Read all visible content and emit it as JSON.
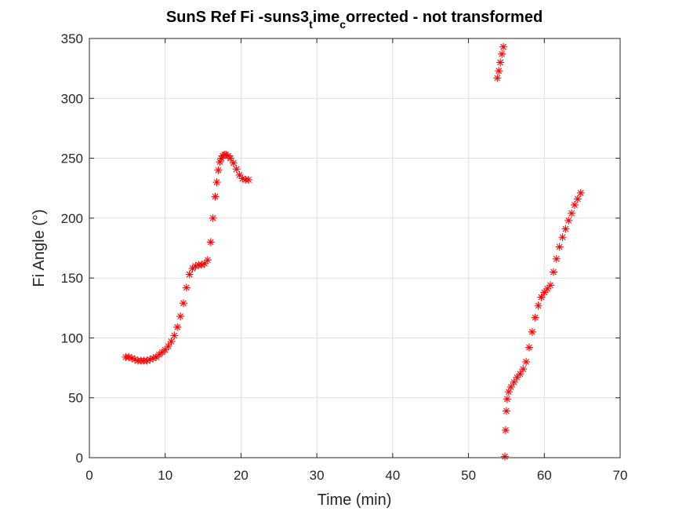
{
  "chart_data": {
    "type": "scatter",
    "title": {
      "part1": "SunS Ref Fi -suns3",
      "sub1": "t",
      "part2": "ime",
      "sub2": "c",
      "part3": "orrected - not transformed"
    },
    "xlabel": "Time (min)",
    "ylabel": "Fi Angle (°)",
    "xlim": [
      0,
      70
    ],
    "ylim": [
      0,
      350
    ],
    "xticks": [
      0,
      10,
      20,
      30,
      40,
      50,
      60,
      70
    ],
    "yticks": [
      0,
      50,
      100,
      150,
      200,
      250,
      300,
      350
    ],
    "grid": true,
    "marker": "asterisk",
    "marker_color": "#ff0000",
    "series": [
      {
        "x": [
          4.8,
          5.2,
          5.6,
          6.0,
          6.4,
          6.8,
          7.2,
          7.6,
          8.0,
          8.4,
          8.8,
          9.2,
          9.6,
          10.0,
          10.4,
          10.8,
          11.2,
          11.6,
          12.0,
          12.4,
          12.8,
          13.2,
          13.6,
          14.0,
          14.4,
          14.8,
          15.2,
          15.6,
          16.0,
          16.3,
          16.6,
          16.8,
          17.0,
          17.2,
          17.4,
          17.6,
          17.8,
          18.0,
          18.3,
          18.6,
          19.0,
          19.4,
          19.8,
          20.2,
          20.6,
          21.0
        ],
        "y": [
          84,
          84,
          83,
          82,
          81,
          81,
          81,
          81,
          82,
          83,
          84,
          86,
          88,
          90,
          93,
          97,
          102,
          109,
          118,
          129,
          142,
          153,
          158,
          160,
          161,
          161,
          162,
          165,
          180,
          200,
          218,
          230,
          240,
          247,
          250,
          252,
          253,
          253,
          252,
          250,
          246,
          241,
          236,
          233,
          232,
          232
        ]
      },
      {
        "x": [
          53.8,
          54.0,
          54.2,
          54.4,
          54.6
        ],
        "y": [
          317,
          323,
          330,
          337,
          343
        ]
      },
      {
        "x": [
          54.8,
          54.9,
          55.0,
          55.1,
          55.3,
          55.6,
          56.0,
          56.4,
          56.8,
          57.2,
          57.6,
          58.0,
          58.4,
          58.8,
          59.2,
          59.6,
          60.0,
          60.4,
          60.8,
          61.2,
          61.6,
          62.0,
          62.4,
          62.8,
          63.2,
          63.6,
          64.0,
          64.4,
          64.8
        ],
        "y": [
          1,
          23,
          39,
          49,
          55,
          59,
          63,
          67,
          70,
          74,
          80,
          92,
          105,
          117,
          127,
          134,
          138,
          141,
          144,
          155,
          166,
          176,
          184,
          191,
          198,
          204,
          211,
          216,
          221
        ]
      }
    ]
  }
}
